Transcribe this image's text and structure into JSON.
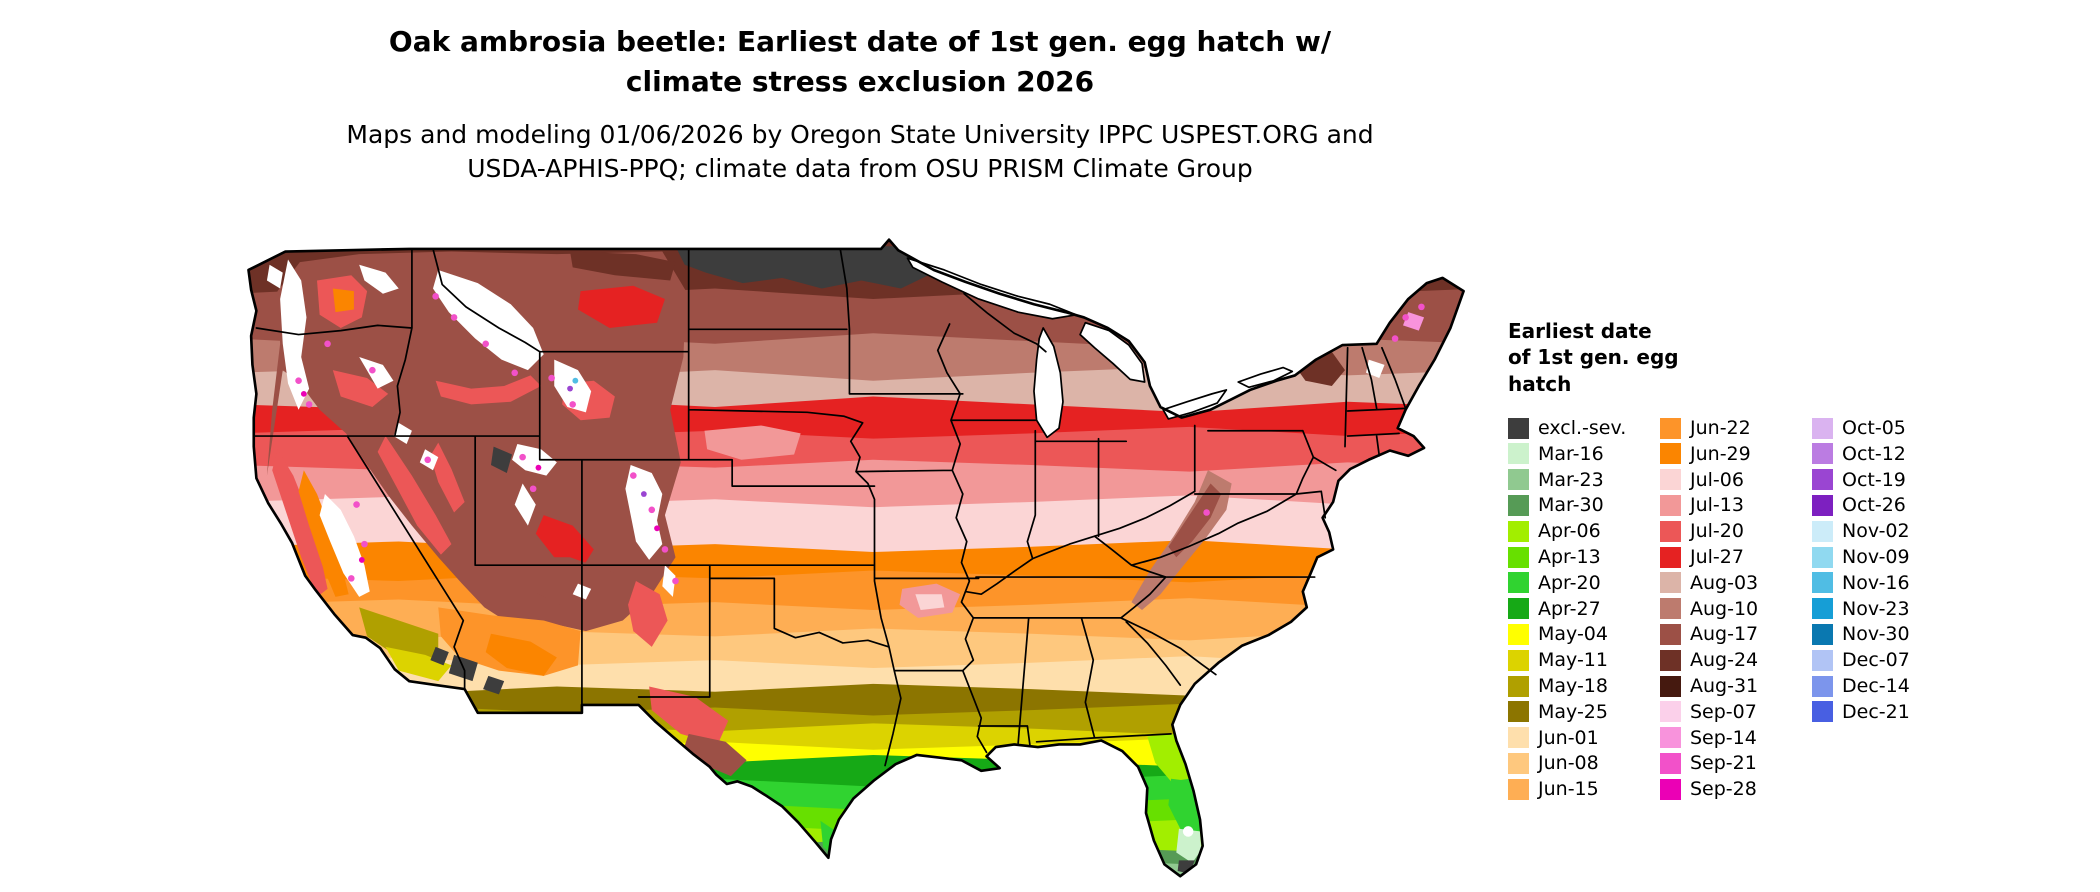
{
  "header": {
    "title_line1": "Oak ambrosia beetle: Earliest date of 1st gen. egg hatch w/",
    "title_line2": "climate stress exclusion 2026",
    "subtitle_line1": "Maps and modeling 01/06/2026 by Oregon State University IPPC USPEST.ORG and",
    "subtitle_line2": "USDA-APHIS-PPQ; climate data from OSU PRISM Climate Group"
  },
  "legend": {
    "title_lines": [
      "Earliest date",
      "of 1st gen. egg",
      "hatch"
    ],
    "columns": [
      {
        "items": [
          {
            "label": "excl.-sev.",
            "color": "#3d3d3d"
          },
          {
            "label": "Mar-16",
            "color": "#ccf2cc"
          },
          {
            "label": "Mar-23",
            "color": "#90c990"
          },
          {
            "label": "Mar-30",
            "color": "#569b56"
          },
          {
            "label": "Apr-06",
            "color": "#a2ee00"
          },
          {
            "label": "Apr-13",
            "color": "#67e000"
          },
          {
            "label": "Apr-20",
            "color": "#30d330"
          },
          {
            "label": "Apr-27",
            "color": "#16a916"
          },
          {
            "label": "May-04",
            "color": "#ffff00"
          },
          {
            "label": "May-11",
            "color": "#dcd300"
          },
          {
            "label": "May-18",
            "color": "#b0a000"
          },
          {
            "label": "May-25",
            "color": "#8c7500"
          },
          {
            "label": "Jun-01",
            "color": "#fedfac"
          },
          {
            "label": "Jun-08",
            "color": "#fec87e"
          },
          {
            "label": "Jun-15",
            "color": "#feae54"
          }
        ]
      },
      {
        "items": [
          {
            "label": "Jun-22",
            "color": "#fd9429"
          },
          {
            "label": "Jun-29",
            "color": "#fb8500"
          },
          {
            "label": "Jul-06",
            "color": "#fbd5d5"
          },
          {
            "label": "Jul-13",
            "color": "#f29898"
          },
          {
            "label": "Jul-20",
            "color": "#ec5757"
          },
          {
            "label": "Jul-27",
            "color": "#e52222"
          },
          {
            "label": "Aug-03",
            "color": "#dcb4a8"
          },
          {
            "label": "Aug-10",
            "color": "#bd7b6e"
          },
          {
            "label": "Aug-17",
            "color": "#9c5046"
          },
          {
            "label": "Aug-24",
            "color": "#6e3126"
          },
          {
            "label": "Aug-31",
            "color": "#45190f"
          },
          {
            "label": "Sep-07",
            "color": "#fbd0ea"
          },
          {
            "label": "Sep-14",
            "color": "#f893dc"
          },
          {
            "label": "Sep-21",
            "color": "#f251c9"
          },
          {
            "label": "Sep-28",
            "color": "#eb00b5"
          }
        ]
      },
      {
        "items": [
          {
            "label": "Oct-05",
            "color": "#dab3f0"
          },
          {
            "label": "Oct-12",
            "color": "#bb7ce2"
          },
          {
            "label": "Oct-19",
            "color": "#9a45d2"
          },
          {
            "label": "Oct-26",
            "color": "#7d20c0"
          },
          {
            "label": "Nov-02",
            "color": "#ccecf9"
          },
          {
            "label": "Nov-09",
            "color": "#90d9f0"
          },
          {
            "label": "Nov-16",
            "color": "#50bde4"
          },
          {
            "label": "Nov-23",
            "color": "#169ed6"
          },
          {
            "label": "Nov-30",
            "color": "#0a78b0"
          },
          {
            "label": "Dec-07",
            "color": "#b1c4f5"
          },
          {
            "label": "Dec-14",
            "color": "#7c95ec"
          },
          {
            "label": "Dec-21",
            "color": "#485fe2"
          }
        ]
      }
    ]
  }
}
